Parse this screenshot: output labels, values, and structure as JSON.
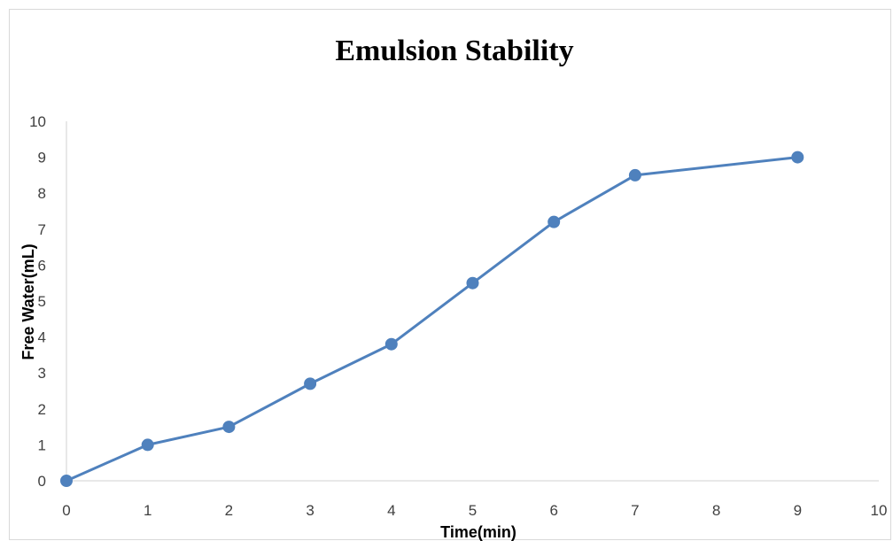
{
  "chart_data": {
    "type": "line",
    "title": "Emulsion Stability",
    "xlabel": "Time(min)",
    "ylabel": "Free Water(mL)",
    "xlim": [
      0,
      10
    ],
    "ylim": [
      0,
      10
    ],
    "x_ticks": [
      "0",
      "1",
      "2",
      "3",
      "4",
      "5",
      "6",
      "7",
      "8",
      "9",
      "10"
    ],
    "y_ticks": [
      "0",
      "1",
      "2",
      "3",
      "4",
      "5",
      "6",
      "7",
      "8",
      "9",
      "10"
    ],
    "grid": false,
    "legend": "none",
    "series": [
      {
        "color": "#4f81bd",
        "markers": true,
        "x": [
          0,
          1,
          2,
          3,
          4,
          5,
          6,
          7,
          9
        ],
        "y": [
          0,
          1,
          1.5,
          2.7,
          3.8,
          5.5,
          7.2,
          8.5,
          9
        ]
      }
    ]
  }
}
